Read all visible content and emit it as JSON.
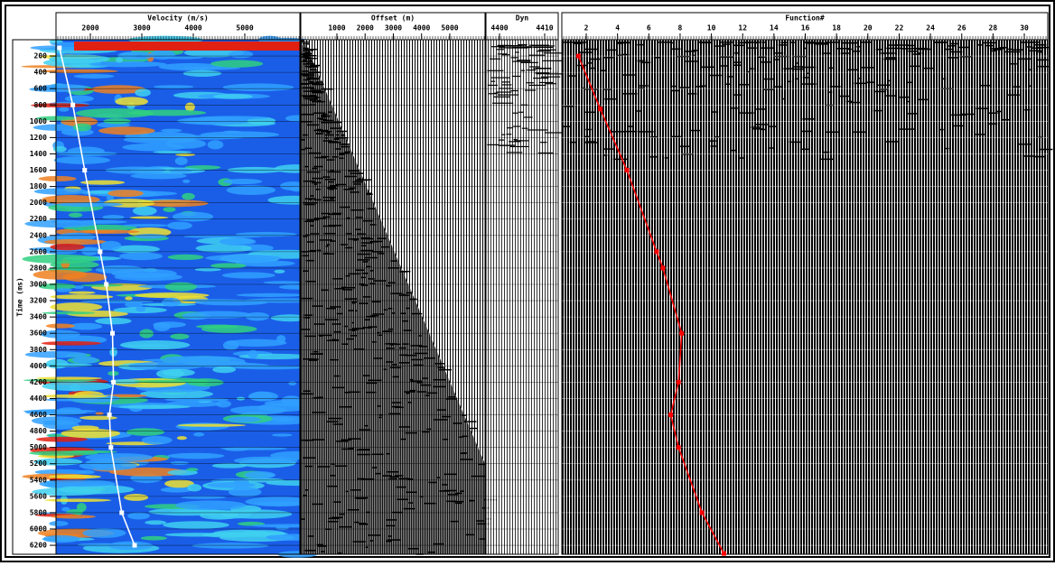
{
  "chart_data": [
    {
      "type": "line",
      "title": "Velocity (m/s)",
      "y_label": "Time (ms)",
      "color": "#ffffff",
      "x": [
        1400,
        1660,
        1890,
        2190,
        2310,
        2430,
        2450,
        2370,
        2400,
        2610,
        2860
      ],
      "y": [
        100,
        800,
        1600,
        2600,
        3000,
        3600,
        4200,
        4600,
        5000,
        5800,
        6200
      ],
      "xlim": [
        1333,
        6070
      ],
      "xticks": [
        2000,
        3000,
        4000,
        5000
      ],
      "ylim": [
        0,
        6310
      ],
      "yticks": [
        200,
        400,
        600,
        800,
        1000,
        1200,
        1400,
        1600,
        1800,
        2000,
        2200,
        2400,
        2600,
        2800,
        3000,
        3200,
        3400,
        3600,
        3800,
        4000,
        4200,
        4400,
        4600,
        4800,
        5000,
        5200,
        5400,
        5600,
        5800,
        6000,
        6200
      ]
    },
    {
      "type": "wiggle",
      "title": "Offset (m)",
      "xlim": [
        -280,
        6250
      ],
      "xticks": [
        1000,
        2000,
        3000,
        4000,
        5000
      ]
    },
    {
      "type": "wiggle",
      "title": "Dyn",
      "xlim": [
        4397,
        4413
      ],
      "xticks": [
        4400,
        4410
      ]
    },
    {
      "type": "line",
      "title": "Function#",
      "color": "#ff0000",
      "x": [
        1.5,
        2.9,
        4.6,
        6.5,
        6.9,
        8.1,
        7.9,
        7.4,
        7.9,
        9.4,
        10.8
      ],
      "y": [
        200,
        850,
        1600,
        2600,
        2800,
        3600,
        4200,
        4600,
        5000,
        5800,
        6300
      ],
      "xlim": [
        0.44,
        31.5
      ],
      "xticks": [
        2,
        4,
        6,
        8,
        10,
        12,
        14,
        16,
        18,
        20,
        22,
        24,
        26,
        28,
        30
      ]
    }
  ]
}
